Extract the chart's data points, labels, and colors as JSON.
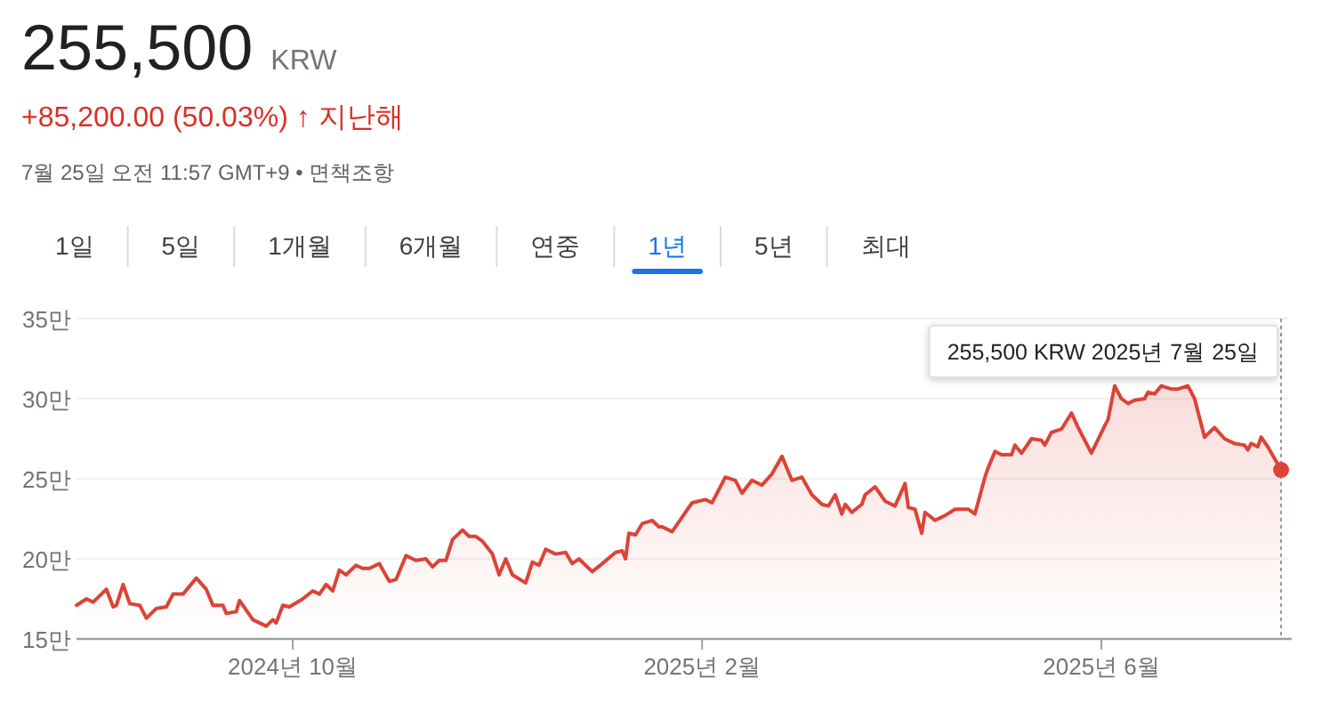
{
  "chart_data": {
    "type": "area",
    "title": "255,500",
    "subtitle": "KRW",
    "annotations": [
      "+85,200.00 (50.03%) ↑ 지난해",
      "7월 25일 오전 11:57 GMT+9 • 면책조항",
      "1일",
      "5일",
      "1개월",
      "6개월",
      "연중",
      "1년",
      "5년",
      "최대",
      "255,500 KRW  2025년 7월 25일"
    ],
    "xlim": [
      "2024-07-28",
      "2025-07-25"
    ],
    "xticks": [
      {
        "value": "2024-10-01",
        "label": "2024년 10월"
      },
      {
        "value": "2025-02-01",
        "label": "2025년 2월"
      },
      {
        "value": "2025-06-01",
        "label": "2025년 6월"
      }
    ],
    "ylim": [
      15,
      35
    ],
    "yticks": [
      {
        "value": 15,
        "label": "15만"
      },
      {
        "value": 20,
        "label": "20만"
      },
      {
        "value": 25,
        "label": "25만"
      },
      {
        "value": 30,
        "label": "30만"
      },
      {
        "value": 35,
        "label": "35만"
      }
    ],
    "grid": "y",
    "ref_lines": [
      {
        "axis": "x",
        "value": "2025-07-25",
        "label": null,
        "color": "#999999",
        "line_style": "dotted"
      }
    ],
    "series": [
      {
        "color": "#db4437",
        "x": [
          "2024-07-28",
          "2024-07-31",
          "2024-08-02",
          "2024-08-04",
          "2024-08-06",
          "2024-08-08",
          "2024-08-09",
          "2024-08-11",
          "2024-08-13",
          "2024-08-16",
          "2024-08-18",
          "2024-08-21",
          "2024-08-24",
          "2024-08-26",
          "2024-08-29",
          "2024-09-02",
          "2024-09-05",
          "2024-09-07",
          "2024-09-10",
          "2024-09-11",
          "2024-09-14",
          "2024-09-15",
          "2024-09-19",
          "2024-09-23",
          "2024-09-25",
          "2024-09-26",
          "2024-09-28",
          "2024-09-30",
          "2024-10-04",
          "2024-10-07",
          "2024-10-09",
          "2024-10-11",
          "2024-10-13",
          "2024-10-15",
          "2024-10-17",
          "2024-10-20",
          "2024-10-22",
          "2024-10-24",
          "2024-10-27",
          "2024-10-30",
          "2024-11-01",
          "2024-11-04",
          "2024-11-07",
          "2024-11-10",
          "2024-11-12",
          "2024-11-14",
          "2024-11-16",
          "2024-11-18",
          "2024-11-21",
          "2024-11-23",
          "2024-11-25",
          "2024-11-27",
          "2024-11-30",
          "2024-12-02",
          "2024-12-04",
          "2024-12-06",
          "2024-12-10",
          "2024-12-12",
          "2024-12-14",
          "2024-12-16",
          "2024-12-19",
          "2024-12-22",
          "2024-12-24",
          "2024-12-26",
          "2024-12-28",
          "2024-12-30",
          "2025-01-02",
          "2025-01-06",
          "2025-01-08",
          "2025-01-09",
          "2025-01-10",
          "2025-01-12",
          "2025-01-14",
          "2025-01-17",
          "2025-01-19",
          "2025-01-20",
          "2025-01-23",
          "2025-01-26",
          "2025-01-29",
          "2025-02-02",
          "2025-02-04",
          "2025-02-08",
          "2025-02-11",
          "2025-02-13",
          "2025-02-16",
          "2025-02-19",
          "2025-02-22",
          "2025-02-25",
          "2025-02-28",
          "2025-03-03",
          "2025-03-06",
          "2025-03-09",
          "2025-03-11",
          "2025-03-13",
          "2025-03-15",
          "2025-03-16",
          "2025-03-18",
          "2025-03-21",
          "2025-03-22",
          "2025-03-25",
          "2025-03-28",
          "2025-03-31",
          "2025-04-03",
          "2025-04-04",
          "2025-04-06",
          "2025-04-08",
          "2025-04-09",
          "2025-04-12",
          "2025-04-15",
          "2025-04-18",
          "2025-04-22",
          "2025-04-24",
          "2025-04-27",
          "2025-04-28",
          "2025-04-30",
          "2025-05-02",
          "2025-05-05",
          "2025-05-06",
          "2025-05-08",
          "2025-05-11",
          "2025-05-14",
          "2025-05-15",
          "2025-05-17",
          "2025-05-20",
          "2025-05-23",
          "2025-05-25",
          "2025-05-29",
          "2025-06-02",
          "2025-06-03",
          "2025-06-05",
          "2025-06-07",
          "2025-06-09",
          "2025-06-11",
          "2025-06-14",
          "2025-06-15",
          "2025-06-17",
          "2025-06-19",
          "2025-06-22",
          "2025-06-24",
          "2025-06-27",
          "2025-06-29",
          "2025-07-02",
          "2025-07-05",
          "2025-07-08",
          "2025-07-11",
          "2025-07-14",
          "2025-07-15",
          "2025-07-16",
          "2025-07-18",
          "2025-07-19",
          "2025-07-21",
          "2025-07-25"
        ],
        "values": [
          17.1,
          17.5,
          17.3,
          17.7,
          18.1,
          17.0,
          17.1,
          18.4,
          17.2,
          17.1,
          16.3,
          16.9,
          17.0,
          17.8,
          17.8,
          18.8,
          18.1,
          17.1,
          17.1,
          16.6,
          16.7,
          17.4,
          16.2,
          15.8,
          16.2,
          16.0,
          17.1,
          17.0,
          17.5,
          18.0,
          17.8,
          18.4,
          18.0,
          19.3,
          19.0,
          19.6,
          19.4,
          19.4,
          19.7,
          18.6,
          18.7,
          20.2,
          19.9,
          20.0,
          19.5,
          19.9,
          19.9,
          21.2,
          21.8,
          21.4,
          21.4,
          21.1,
          20.3,
          19.0,
          20.0,
          19.0,
          18.5,
          19.8,
          19.6,
          20.6,
          20.3,
          20.4,
          19.7,
          20.0,
          19.6,
          19.2,
          19.7,
          20.4,
          20.5,
          20.0,
          21.6,
          21.5,
          22.2,
          22.4,
          22.0,
          22.0,
          21.7,
          22.6,
          23.5,
          23.7,
          23.5,
          25.1,
          24.9,
          24.1,
          24.9,
          24.6,
          25.3,
          26.4,
          24.9,
          25.1,
          24.0,
          23.4,
          23.3,
          24.0,
          22.8,
          23.4,
          22.9,
          23.4,
          24.0,
          24.5,
          23.6,
          23.3,
          24.7,
          23.2,
          23.1,
          21.6,
          22.9,
          22.4,
          22.7,
          23.1,
          23.1,
          22.8,
          25.1,
          25.7,
          26.7,
          26.5,
          26.5,
          27.1,
          26.6,
          27.5,
          27.4,
          27.1,
          27.9,
          28.1,
          29.1,
          28.2,
          26.6,
          28.3,
          28.7,
          30.8,
          30.0,
          29.7,
          29.9,
          30.0,
          30.4,
          30.3,
          30.8,
          30.6,
          30.6,
          30.8,
          30.0,
          27.6,
          28.2,
          27.5,
          27.2,
          27.1,
          26.8,
          27.2,
          27.0,
          27.6,
          27.0,
          25.55
        ]
      }
    ]
  }
}
